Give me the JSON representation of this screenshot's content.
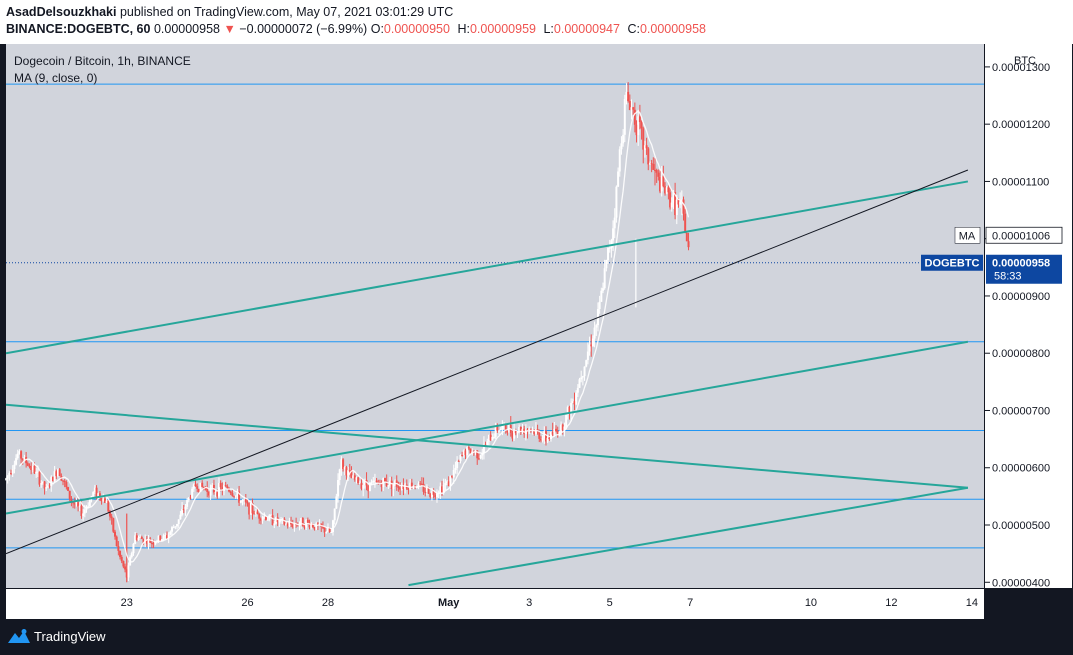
{
  "header": {
    "author": "AsadDelsouzkhaki",
    "published": "published on TradingView.com, May 07, 2021 03:01:29 UTC",
    "symbol": "BINANCE:DOGEBTC, 60",
    "last": "0.00000958",
    "arrow": "▼",
    "change": "−0.00000072 (−6.99%)",
    "o_label": "O:",
    "o_value": "0.00000950",
    "h_label": "H:",
    "h_value": "0.00000959",
    "l_label": "L:",
    "l_value": "0.00000947",
    "c_label": "C:",
    "c_value": "0.00000958"
  },
  "footer": {
    "brand": "TradingView",
    "logo_icon": "tradingview-logo-icon"
  },
  "colors": {
    "background": "#d1d4dc",
    "up": "#ffffff",
    "down": "#ef5350",
    "teal": "#26a69a",
    "h_lines": "#2196f3",
    "price_tag": "#0d47a1"
  },
  "chart_data": {
    "type": "candlestick",
    "title": "Dogecoin / Bitcoin, 1h, BINANCE",
    "indicator": "MA (9, close, 0)",
    "y_unit": "BTC",
    "ylim": [
      3.9e-06,
      1.34e-05
    ],
    "y_ticks": [
      "0.00001300",
      "0.00001200",
      "0.00001100",
      "0.00001000",
      "0.00000900",
      "0.00000800",
      "0.00000700",
      "0.00000600",
      "0.00000500",
      "0.00000400"
    ],
    "x_ticks": [
      {
        "label": "23",
        "day": 23
      },
      {
        "label": "26",
        "day": 26
      },
      {
        "label": "28",
        "day": 28
      },
      {
        "label": "May",
        "day": 31
      },
      {
        "label": "3",
        "day": 33
      },
      {
        "label": "5",
        "day": 35
      },
      {
        "label": "7",
        "day": 37
      },
      {
        "label": "10",
        "day": 40
      },
      {
        "label": "12",
        "day": 42
      },
      {
        "label": "14",
        "day": 44
      }
    ],
    "ma_label": "MA",
    "ma_value": "0.00001006",
    "last_symbol": "DOGEBTC",
    "last_value": "0.00000958",
    "countdown": "58:33",
    "horizontal_lines": [
      1.27e-05,
      8.2e-06,
      6.65e-06,
      5.45e-06,
      4.6e-06
    ],
    "trend_lines": [
      {
        "color": "teal",
        "from": [
          20.0,
          8e-06
        ],
        "to": [
          43.9,
          1.1e-05
        ]
      },
      {
        "color": "teal",
        "from": [
          20.0,
          5.2e-06
        ],
        "to": [
          43.9,
          8.2e-06
        ]
      },
      {
        "color": "teal",
        "from": [
          20.0,
          7.1e-06
        ],
        "to": [
          43.9,
          5.65e-06
        ]
      },
      {
        "color": "teal",
        "from": [
          30.0,
          3.95e-06
        ],
        "to": [
          43.9,
          5.65e-06
        ]
      },
      {
        "color": "black",
        "from": [
          20.0,
          4.5e-06
        ],
        "to": [
          43.9,
          1.12e-05
        ]
      }
    ],
    "price_path": [
      [
        20.0,
        5.8e-06
      ],
      [
        20.3,
        6.25e-06
      ],
      [
        20.7,
        5.95e-06
      ],
      [
        21.0,
        5.6e-06
      ],
      [
        21.3,
        6e-06
      ],
      [
        21.6,
        5.45e-06
      ],
      [
        21.9,
        5.2e-06
      ],
      [
        22.2,
        5.6e-06
      ],
      [
        22.5,
        5.4e-06
      ],
      [
        22.8,
        4.5e-06
      ],
      [
        23.0,
        4.1e-06
      ],
      [
        23.2,
        4.8e-06
      ],
      [
        23.6,
        4.7e-06
      ],
      [
        24.0,
        4.8e-06
      ],
      [
        24.3,
        5.1e-06
      ],
      [
        24.7,
        5.7e-06
      ],
      [
        25.1,
        5.6e-06
      ],
      [
        25.5,
        5.65e-06
      ],
      [
        25.8,
        5.45e-06
      ],
      [
        26.2,
        5.2e-06
      ],
      [
        26.6,
        5.1e-06
      ],
      [
        27.0,
        5e-06
      ],
      [
        27.4,
        5.05e-06
      ],
      [
        27.8,
        4.95e-06
      ],
      [
        28.1,
        4.85e-06
      ],
      [
        28.3,
        6.1e-06
      ],
      [
        28.6,
        5.8e-06
      ],
      [
        29.0,
        5.7e-06
      ],
      [
        29.4,
        5.75e-06
      ],
      [
        29.8,
        5.7e-06
      ],
      [
        30.2,
        5.7e-06
      ],
      [
        30.6,
        5.55e-06
      ],
      [
        31.0,
        5.75e-06
      ],
      [
        31.4,
        6.3e-06
      ],
      [
        31.8,
        6.25e-06
      ],
      [
        32.2,
        6.7e-06
      ],
      [
        32.6,
        6.65e-06
      ],
      [
        33.0,
        6.7e-06
      ],
      [
        33.4,
        6.5e-06
      ],
      [
        33.8,
        6.7e-06
      ],
      [
        34.1,
        7.2e-06
      ],
      [
        34.4,
        7.9e-06
      ],
      [
        34.7,
        8.6e-06
      ],
      [
        34.9,
        9.5e-06
      ],
      [
        35.1,
        1.03e-05
      ],
      [
        35.25,
        1.15e-05
      ],
      [
        35.4,
        1.25e-05
      ],
      [
        35.6,
        1.22e-05
      ],
      [
        35.9,
        1.15e-05
      ],
      [
        36.2,
        1.1e-05
      ],
      [
        36.5,
        1.07e-05
      ],
      [
        36.8,
        1.05e-05
      ],
      [
        37.0,
        9.58e-06
      ]
    ]
  }
}
